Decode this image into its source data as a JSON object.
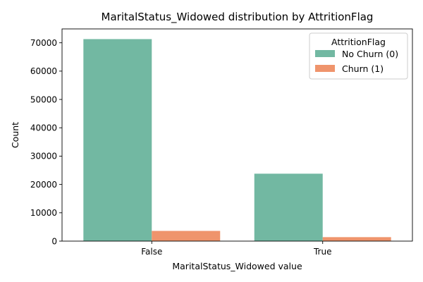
{
  "chart_data": {
    "type": "bar",
    "title": "MaritalStatus_Widowed distribution by AttritionFlag",
    "xlabel": "MaritalStatus_Widowed value",
    "ylabel": "Count",
    "categories": [
      "False",
      "True"
    ],
    "series": [
      {
        "name": "No Churn (0)",
        "values": [
          71300,
          23800
        ],
        "color": "#72b8a2"
      },
      {
        "name": "Churn (1)",
        "values": [
          3600,
          1400
        ],
        "color": "#ef946c"
      }
    ],
    "ylim": [
      0,
      74900
    ],
    "yticks": [
      0,
      10000,
      20000,
      30000,
      40000,
      50000,
      60000,
      70000
    ],
    "grid": false,
    "legend": {
      "title": "AttritionFlag",
      "placement": "top-right"
    }
  }
}
